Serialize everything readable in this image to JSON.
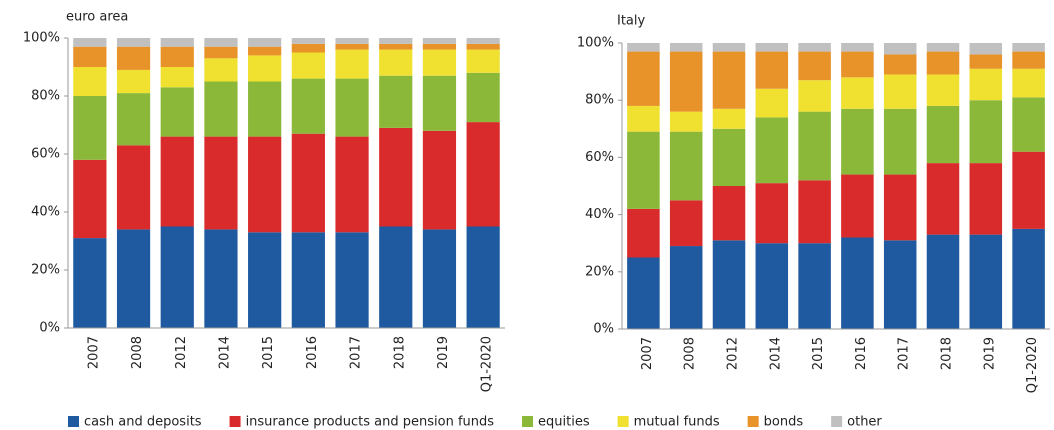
{
  "chart_data": [
    {
      "type": "bar",
      "stacked": true,
      "title": "euro area",
      "categories": [
        "2007",
        "2008",
        "2012",
        "2014",
        "2015",
        "2016",
        "2017",
        "2018",
        "2019",
        "Q1-2020"
      ],
      "ylim": [
        0,
        100
      ],
      "yticks": [
        {
          "value": 0,
          "label": "0%"
        },
        {
          "value": 20,
          "label": "20%"
        },
        {
          "value": 40,
          "label": "40%"
        },
        {
          "value": 60,
          "label": "60%"
        },
        {
          "value": 80,
          "label": "80%"
        },
        {
          "value": 100,
          "label": "100%"
        }
      ],
      "legend": "bottom",
      "series": [
        {
          "name": "cash and deposits",
          "color": "#1f5aa0",
          "values": [
            31,
            34,
            35,
            34,
            33,
            33,
            33,
            35,
            34,
            35
          ]
        },
        {
          "name": "insurance products and pension funds",
          "color": "#d92b2b",
          "values": [
            27,
            29,
            31,
            32,
            33,
            34,
            33,
            34,
            34,
            36
          ]
        },
        {
          "name": "equities",
          "color": "#8cb83a",
          "values": [
            22,
            18,
            17,
            19,
            19,
            19,
            20,
            18,
            19,
            17
          ]
        },
        {
          "name": "mutual funds",
          "color": "#f0e030",
          "values": [
            10,
            8,
            7,
            8,
            9,
            9,
            10,
            9,
            9,
            8
          ]
        },
        {
          "name": "bonds",
          "color": "#e8922a",
          "values": [
            7,
            8,
            7,
            4,
            3,
            3,
            2,
            2,
            2,
            2
          ]
        },
        {
          "name": "other",
          "color": "#c0c0c0",
          "values": [
            3,
            3,
            3,
            3,
            3,
            2,
            2,
            2,
            2,
            2
          ]
        }
      ]
    },
    {
      "type": "bar",
      "stacked": true,
      "title": "Italy",
      "categories": [
        "2007",
        "2008",
        "2012",
        "2014",
        "2015",
        "2016",
        "2017",
        "2018",
        "2019",
        "Q1-2020"
      ],
      "ylim": [
        0,
        100
      ],
      "yticks": [
        {
          "value": 0,
          "label": "0%"
        },
        {
          "value": 20,
          "label": "20%"
        },
        {
          "value": 40,
          "label": "40%"
        },
        {
          "value": 60,
          "label": "60%"
        },
        {
          "value": 80,
          "label": "80%"
        },
        {
          "value": 100,
          "label": "100%"
        }
      ],
      "series": [
        {
          "name": "cash and deposits",
          "color": "#1f5aa0",
          "values": [
            25,
            29,
            31,
            30,
            30,
            32,
            31,
            33,
            33,
            35
          ]
        },
        {
          "name": "insurance products and pension funds",
          "color": "#d92b2b",
          "values": [
            17,
            16,
            19,
            21,
            22,
            22,
            23,
            25,
            25,
            27
          ]
        },
        {
          "name": "equities",
          "color": "#8cb83a",
          "values": [
            27,
            24,
            20,
            23,
            24,
            23,
            23,
            20,
            22,
            19
          ]
        },
        {
          "name": "mutual funds",
          "color": "#f0e030",
          "values": [
            9,
            7,
            7,
            10,
            11,
            11,
            12,
            11,
            11,
            10
          ]
        },
        {
          "name": "bonds",
          "color": "#e8922a",
          "values": [
            19,
            21,
            20,
            13,
            10,
            9,
            7,
            8,
            5,
            6
          ]
        },
        {
          "name": "other",
          "color": "#c0c0c0",
          "values": [
            3,
            3,
            3,
            3,
            3,
            3,
            4,
            3,
            4,
            3
          ]
        }
      ]
    }
  ]
}
